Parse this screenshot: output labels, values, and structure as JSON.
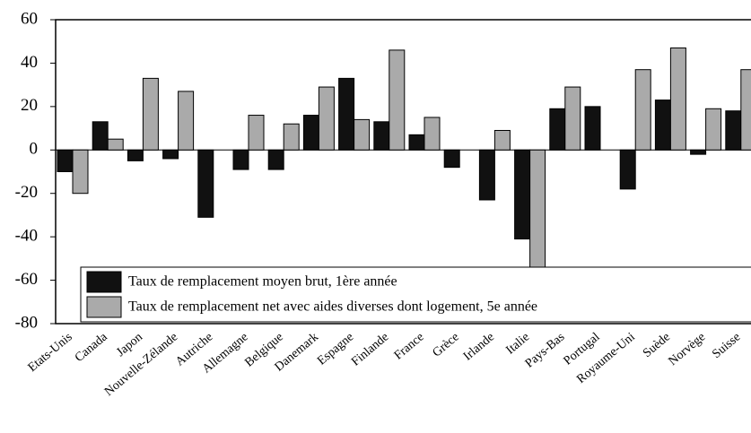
{
  "chart_data": {
    "type": "bar",
    "categories": [
      "Etats-Unis",
      "Canada",
      "Japon",
      "Nouvelle-Zélande",
      "Autriche",
      "Allemagne",
      "Belgique",
      "Danemark",
      "Espagne",
      "Finlande",
      "France",
      "Grèce",
      "Irlande",
      "Italie",
      "Pays-Bas",
      "Portugal",
      "Royaume-Uni",
      "Suède",
      "Norvège",
      "Suisse"
    ],
    "series": [
      {
        "name": "Taux de remplacement moyen brut, 1ère année",
        "color": "#111111",
        "values": [
          -10,
          13,
          -5,
          -4,
          -31,
          -9,
          -9,
          16,
          33,
          13,
          7,
          -8,
          -23,
          -41,
          19,
          20,
          -18,
          23,
          -2,
          18
        ]
      },
      {
        "name": "Taux de remplacement net avec aides diverses dont logement, 5e année",
        "color": "#aaaaaa",
        "values": [
          -20,
          5,
          33,
          27,
          null,
          16,
          12,
          29,
          14,
          46,
          15,
          null,
          9,
          -60,
          29,
          null,
          37,
          47,
          19,
          37
        ]
      }
    ],
    "ylim": [
      -80,
      60
    ],
    "yticks": [
      -80,
      -60,
      -40,
      -20,
      0,
      20,
      40,
      60
    ]
  }
}
